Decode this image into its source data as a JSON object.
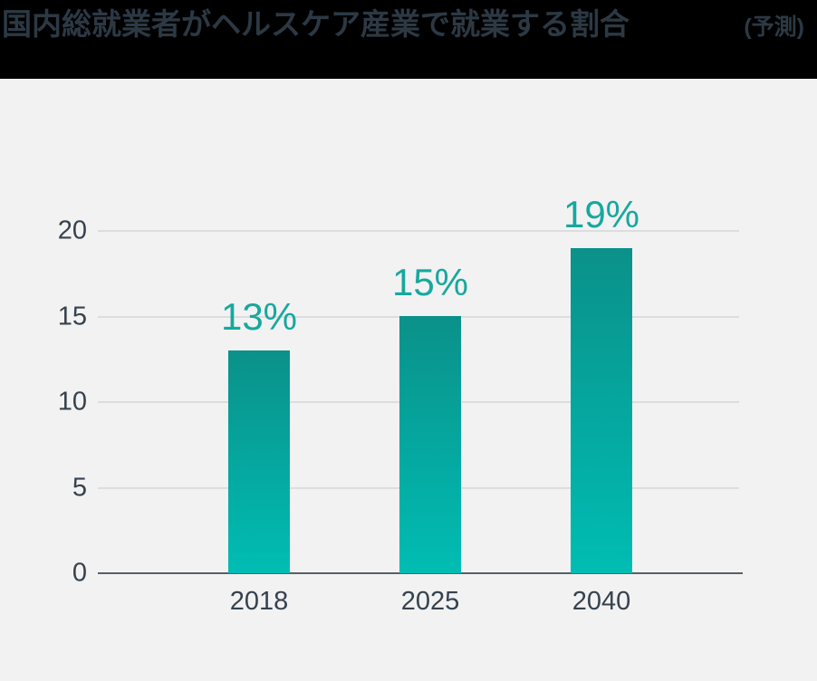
{
  "header": {
    "title": "国内総就業者がヘルスケア産業で就業する割合",
    "annotation": "(予測)"
  },
  "chart_data": {
    "type": "bar",
    "title": "国内総就業者がヘルスケア産業で就業する割合 (予測)",
    "categories": [
      "2018",
      "2025",
      "2040"
    ],
    "values": [
      13,
      15,
      19
    ],
    "value_labels": [
      "13%",
      "15%",
      "19%"
    ],
    "xlabel": "",
    "ylabel": "",
    "ylim": [
      0,
      20
    ],
    "yticks": [
      0,
      5,
      10,
      15,
      20
    ],
    "grid": true,
    "legend": "none"
  },
  "colors": {
    "page_bg": "#f2f2f2",
    "header_bg": "#000000",
    "header_text": "#2c3944",
    "grid": "#dcdddf",
    "axis": "#566069",
    "tick_text": "#36424e",
    "value_label": "#16a89e",
    "bar_gradient_top": "#0a918a",
    "bar_gradient_bottom": "#00bdb3"
  }
}
